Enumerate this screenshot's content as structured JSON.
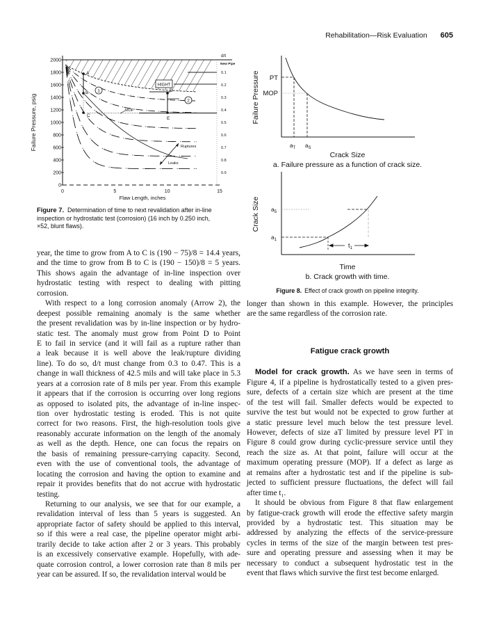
{
  "header": {
    "running_head": "Rehabilitation—Risk Evaluation",
    "page_number": "605"
  },
  "figure7": {
    "caption_label": "Figure 7.",
    "caption_lines": [
      "Determination of time to next revalidation after in-line",
      "inspection or hydrostatic test (corrosion) (16 inch by 0.250 inch,",
      "×52, blunt flaws)."
    ],
    "ylabel": "Failure Pressure, psig",
    "xlabel": "Flaw Length, inches",
    "y_ticks": [
      "2000",
      "1800",
      "1600",
      "1400",
      "1200",
      "1000",
      "800",
      "600",
      "400",
      "200",
      "0"
    ],
    "x_ticks": [
      "0",
      "5",
      "10",
      "15"
    ],
    "dt_header": "d/t",
    "dt_new_pipe": "New Pipe",
    "dt_values": [
      "0.1",
      "0.2",
      "0.3",
      "0.4",
      "0.5",
      "0.6",
      "0.7",
      "0.8",
      "0.9"
    ],
    "points": {
      "A": "A",
      "B": "B",
      "C": "C",
      "D": "D",
      "E": "E"
    },
    "arrow1": "1",
    "arrow2": "2",
    "mop": "MOP",
    "ruptures": "Ruptures",
    "leaks": "Leaks",
    "region_label": "HIGHT"
  },
  "figure8": {
    "a": {
      "ylabel": "Failure Pressure",
      "xlabel": "Crack Size",
      "pt": "PT",
      "mop": "MOP",
      "a_t": "a",
      "a_t_sub": "T",
      "a_s": "a",
      "a_s_sub": "S",
      "caption": "a. Failure pressure as a function of crack size."
    },
    "b": {
      "ylabel": "Crack Size",
      "xlabel": "Time",
      "a5": "a",
      "a5_sub": "5",
      "a1": "a",
      "a1_sub": "1",
      "t1": "t",
      "t1_sub": "1",
      "caption": "b. Crack growth with time."
    },
    "caption_label": "Figure 8.",
    "caption_text": "Effect of crack growth on pipeline integrity."
  },
  "left_column": {
    "paragraphs": [
      {
        "lines": [
          "year, the time to grow from A to C is (190 − 75)/8 = 14.4 years,",
          "and the time to grow from B to C is (190 − 150)/8 = 5 years.",
          "This shows again the advantage of in-line inspection over",
          "hydrostatic testing with respect to dealing with pitting",
          "corrosion."
        ]
      },
      {
        "lines": [
          "With respect to a long corrosion anomaly (Arrow 2), the",
          "deepest possible remaining anomaly is the same whether",
          "the present revalidation was by in-line inspection or by hydro-",
          "static test. The anomaly must grow from Point D to Point",
          "E to fail in service (and it will fail as a rupture rather than",
          "a leak because it is well above the leak/rupture dividing",
          "line). To do so, d/t must change from 0.3 to 0.47. This is a",
          "change in wall thickness of 42.5 mils and will take place in 5.3",
          "years at a corrosion rate of 8 mils per year. From this example",
          "it appears that if the corrosion is occurring over long regions",
          "as opposed to isolated pits, the advantage of in-line inspec-",
          "tion over hydrostatic testing is eroded. This is not quite",
          "correct for two reasons. First, the high-resolution tools give",
          "reasonably accurate information on the length of the anomaly",
          "as well as the depth. Hence, one can focus the repairs on",
          "the basis of remaining pressure-carrying capacity. Second,",
          "even with the use of conventional tools, the advantage of",
          "locating the corrosion and having the option to examine and",
          "repair it provides benefits that do not accrue with hydrostatic",
          "testing."
        ]
      },
      {
        "lines": [
          "Returning to our analysis, we see that for our example, a",
          "revalidation interval of less than 5 years is suggested. An",
          "appropriate factor of safety should be applied to this interval,",
          "so if this were a real case, the pipeline operator might arbi-",
          "trarily decide to take action after 2 or 3 years. This probably",
          "is an excessively conservative example. Hopefully, with ade-",
          "quate corrosion control, a lower corrosion rate than 8 mils per",
          "year can be assured. If so, the revalidation interval would be"
        ]
      }
    ]
  },
  "right_column": {
    "intro": {
      "lines": [
        "longer than shown in this example. However, the principles",
        "are the same regardless of the corrosion rate."
      ]
    },
    "heading": "Fatigue crack growth",
    "paragraphs": [
      {
        "run_in": "Model for crack growth.",
        "lines": [
          " As we have seen in terms of",
          "Figure 4, if a pipeline is hydrostatically tested to a given pres-",
          "sure, defects of a certain size which are present at the time",
          "of the test will fail. Smaller defects would be expected to",
          "survive the test but would not be expected to grow further at",
          "a static pressure level much below the test pressure level.",
          "However, defects of size aT limited by pressure level PT in",
          "Figure 8 could grow during cyclic-pressure service until they",
          "reach the size as. At that point, failure will occur at the",
          "maximum operating pressure (MOP). If a defect as large as",
          "at remains after a hydrostatic test and if the pipeline is sub-",
          "jected to sufficient pressure fluctuations, the defect will fail",
          "after time t₁."
        ]
      },
      {
        "lines": [
          "It should be obvious from Figure 8 that flaw enlargement",
          "by fatigue-crack growth will erode the effective safety margin",
          "provided by a hydrostatic test. This situation may be",
          "addressed by analyzing the effects of the service-pressure",
          "cycles in terms of the size of the margin between test pres-",
          "sure and operating pressure and assessing when it may be",
          "necessary to conduct a subsequent hydrostatic test in the",
          "event that flaws which survive the first test become enlarged."
        ]
      }
    ]
  }
}
